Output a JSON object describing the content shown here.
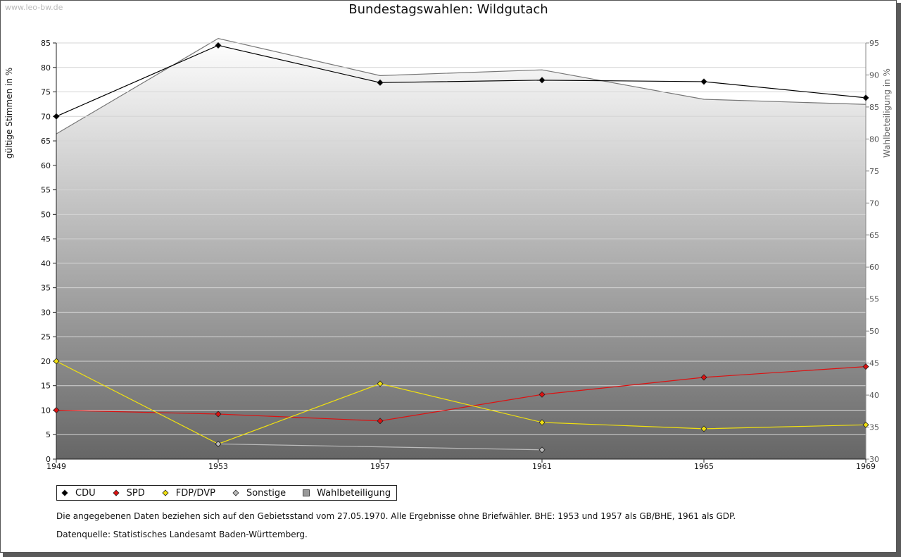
{
  "watermark": "www.leo-bw.de",
  "chart_data": {
    "type": "line",
    "title": "Bundestagswahlen: Wildgutach",
    "categories": [
      "1949",
      "1953",
      "1957",
      "1961",
      "1965",
      "1969"
    ],
    "ylabel": "gültige Stimmen in %",
    "y2label": "Wahlbeteiligung in %",
    "ylim": [
      0,
      85
    ],
    "y2lim": [
      30,
      95
    ],
    "yticks": [
      "0",
      "5",
      "10",
      "15",
      "20",
      "25",
      "30",
      "35",
      "40",
      "45",
      "50",
      "55",
      "60",
      "65",
      "70",
      "75",
      "80",
      "85"
    ],
    "y2ticks": [
      "30",
      "35",
      "40",
      "45",
      "50",
      "55",
      "60",
      "65",
      "70",
      "75",
      "80",
      "85",
      "90",
      "95"
    ],
    "series": [
      {
        "name": "CDU",
        "color": "#000000",
        "values": [
          70.0,
          84.5,
          76.9,
          77.4,
          77.1,
          73.8
        ]
      },
      {
        "name": "SPD",
        "color": "#dd1111",
        "values": [
          10.0,
          9.2,
          7.8,
          13.2,
          16.7,
          18.9
        ]
      },
      {
        "name": "FDP/DVP",
        "color": "#f0e010",
        "values": [
          20.0,
          3.1,
          15.4,
          7.5,
          6.2,
          7.0
        ]
      },
      {
        "name": "Sonstige",
        "color": "#bbbbbb",
        "values": [
          null,
          3.1,
          null,
          1.9,
          null,
          null
        ]
      }
    ],
    "turnout": {
      "name": "Wahlbeteiligung",
      "axis": "right",
      "values": [
        80.8,
        95.7,
        89.9,
        90.8,
        86.2,
        85.4
      ]
    },
    "legend_position": "bottom-left"
  },
  "notes": {
    "line1": "Die angegebenen Daten beziehen sich auf den Gebietsstand vom 27.05.1970. Alle Ergebnisse ohne Briefwähler. BHE: 1953 und 1957 als GB/BHE, 1961 als GDP.",
    "line2": "Datenquelle: Statistisches Landesamt Baden-Württemberg."
  }
}
